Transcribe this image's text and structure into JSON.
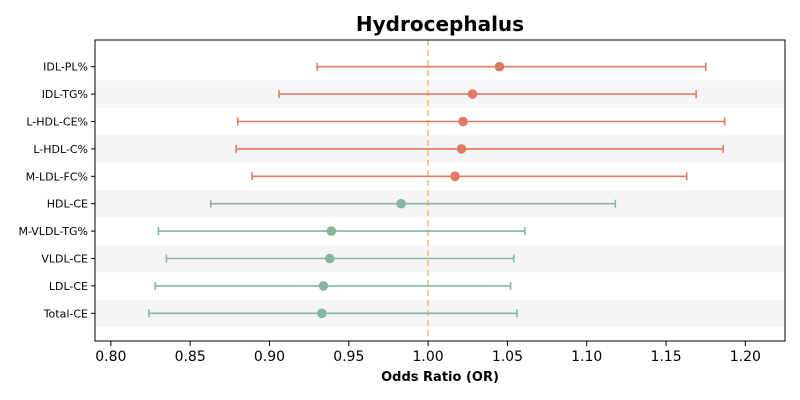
{
  "chart_data": {
    "type": "forest",
    "title": "Hydrocephalus",
    "xlabel": "Odds Ratio (OR)",
    "ylabel": "",
    "xlim": [
      0.79,
      1.225
    ],
    "xticks": [
      "0.80",
      "0.85",
      "0.90",
      "0.95",
      "1.00",
      "1.05",
      "1.10",
      "1.15",
      "1.20"
    ],
    "reference_line": 1.0,
    "row_shading": "alternating",
    "colors": {
      "positive": "#e07b63",
      "negative": "#87b59e",
      "reference_line": "#f0c27b",
      "band": "#f5f5f5"
    },
    "rows": [
      {
        "label": "IDL-PL%",
        "or": 1.045,
        "lower": 0.93,
        "upper": 1.175,
        "group": "positive"
      },
      {
        "label": "IDL-TG%",
        "or": 1.028,
        "lower": 0.906,
        "upper": 1.169,
        "group": "positive"
      },
      {
        "label": "L-HDL-CE%",
        "or": 1.022,
        "lower": 0.88,
        "upper": 1.187,
        "group": "positive"
      },
      {
        "label": "L-HDL-C%",
        "or": 1.021,
        "lower": 0.879,
        "upper": 1.186,
        "group": "positive"
      },
      {
        "label": "M-LDL-FC%",
        "or": 1.017,
        "lower": 0.889,
        "upper": 1.163,
        "group": "positive"
      },
      {
        "label": "HDL-CE",
        "or": 0.983,
        "lower": 0.863,
        "upper": 1.118,
        "group": "negative"
      },
      {
        "label": "M-VLDL-TG%",
        "or": 0.939,
        "lower": 0.83,
        "upper": 1.061,
        "group": "negative"
      },
      {
        "label": "VLDL-CE",
        "or": 0.938,
        "lower": 0.835,
        "upper": 1.054,
        "group": "negative"
      },
      {
        "label": "LDL-CE",
        "or": 0.934,
        "lower": 0.828,
        "upper": 1.052,
        "group": "negative"
      },
      {
        "label": "Total-CE",
        "or": 0.933,
        "lower": 0.824,
        "upper": 1.056,
        "group": "negative"
      }
    ]
  }
}
